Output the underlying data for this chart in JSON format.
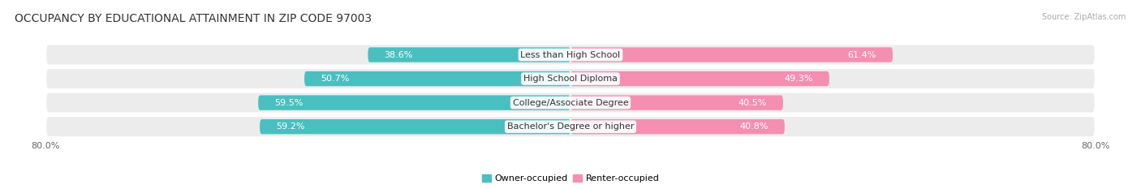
{
  "title": "OCCUPANCY BY EDUCATIONAL ATTAINMENT IN ZIP CODE 97003",
  "source": "Source: ZipAtlas.com",
  "categories": [
    "Less than High School",
    "High School Diploma",
    "College/Associate Degree",
    "Bachelor's Degree or higher"
  ],
  "owner_pct": [
    38.6,
    50.7,
    59.5,
    59.2
  ],
  "renter_pct": [
    61.4,
    49.3,
    40.5,
    40.8
  ],
  "owner_color": "#4bbfbf",
  "renter_color": "#f48fb1",
  "row_bg_color": "#ececec",
  "xlim_left": -80.0,
  "xlim_right": 80.0,
  "axis_label_left": "80.0%",
  "axis_label_right": "80.0%",
  "title_fontsize": 10,
  "label_fontsize": 8,
  "cat_fontsize": 8,
  "tick_fontsize": 8,
  "figsize": [
    14.06,
    2.33
  ],
  "dpi": 100
}
